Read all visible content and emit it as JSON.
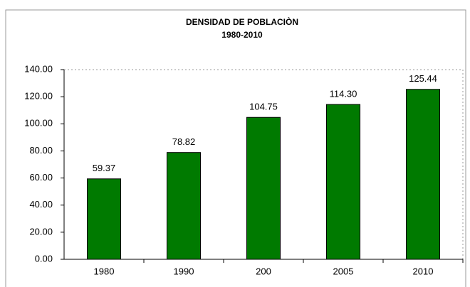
{
  "chart_data": {
    "type": "bar",
    "title": "DENSIDAD DE POBLACIÒN",
    "subtitle": "1980-2010",
    "categories": [
      "1980",
      "1990",
      "200",
      "2005",
      "2010"
    ],
    "values": [
      59.37,
      78.82,
      104.75,
      114.3,
      125.44
    ],
    "value_labels": [
      "59.37",
      "78.82",
      "104.75",
      "114.30",
      "125.44"
    ],
    "color": "#007a00",
    "ylim": [
      0,
      140
    ],
    "yticks": [
      {
        "value": 0,
        "label": "0.00"
      },
      {
        "value": 20,
        "label": "20.00"
      },
      {
        "value": 40,
        "label": "40.00"
      },
      {
        "value": 60,
        "label": "60.00"
      },
      {
        "value": 80,
        "label": "80.00"
      },
      {
        "value": 100,
        "label": "100.00"
      },
      {
        "value": 120,
        "label": "120.00"
      },
      {
        "value": 140,
        "label": "140.00"
      }
    ],
    "grid": false
  }
}
